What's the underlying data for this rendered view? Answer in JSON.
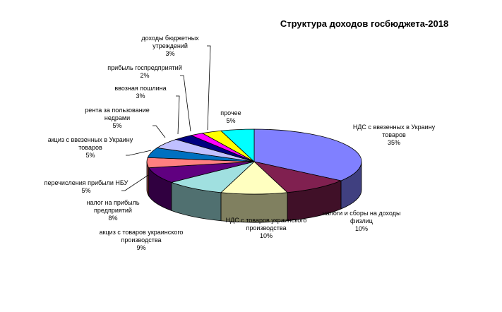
{
  "chart_data": {
    "type": "pie",
    "title": "Структура доходов госбюджета-2018",
    "three_d": true,
    "legend": "none",
    "slices": [
      {
        "label": [
          "НДС с ввезенных в Украину",
          "товаров"
        ],
        "percent_label": "35%",
        "value": 35,
        "color": "#8080FF"
      },
      {
        "label": [
          "налоги и сборы на доходы",
          "физлиц"
        ],
        "percent_label": "10%",
        "value": 10,
        "color": "#802050"
      },
      {
        "label": [
          "НДС с товаров украинского",
          "производства"
        ],
        "percent_label": "10%",
        "value": 10,
        "color": "#FFFFC0"
      },
      {
        "label": [
          "акциз с товаров украинского",
          "производства"
        ],
        "percent_label": "9%",
        "value": 9,
        "color": "#A0E0E0"
      },
      {
        "label": [
          "налог на прибыль",
          "предприятий"
        ],
        "percent_label": "8%",
        "value": 8,
        "color": "#600080"
      },
      {
        "label": [
          "перечисления прибыли НБУ"
        ],
        "percent_label": "5%",
        "value": 5,
        "color": "#FF8080"
      },
      {
        "label": [
          "акциз с ввезенных в Украину",
          "товаров"
        ],
        "percent_label": "5%",
        "value": 5,
        "color": "#0070C0"
      },
      {
        "label": [
          "рента за пользование",
          "недрами"
        ],
        "percent_label": "5%",
        "value": 5,
        "color": "#C0C0FF"
      },
      {
        "label": [
          "ввозная пошлина"
        ],
        "percent_label": "3%",
        "value": 3,
        "color": "#000080"
      },
      {
        "label": [
          "прибыль госпредприятий"
        ],
        "percent_label": "2%",
        "value": 2,
        "color": "#FF00FF"
      },
      {
        "label": [
          "доходы бюджетных",
          "утреждений"
        ],
        "percent_label": "3%",
        "value": 3,
        "color": "#FFFF00"
      },
      {
        "label": [
          "прочее"
        ],
        "percent_label": "5%",
        "value": 5,
        "color": "#00FFFF"
      }
    ]
  }
}
